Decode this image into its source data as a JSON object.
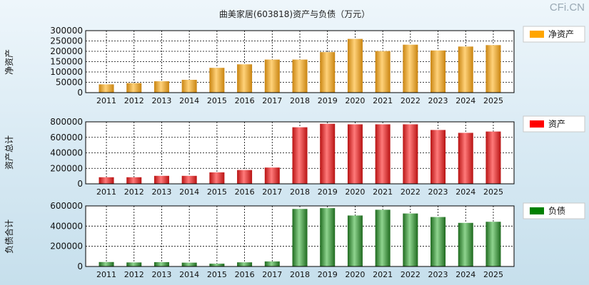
{
  "title": "曲美家居(603818)资产与负债（万元）",
  "watermark": "CFi.CN",
  "colors": {
    "net_assets": "#f2a52a",
    "total_assets": "#e02a2a",
    "total_liabilities": "#2e8a2e"
  },
  "chart_data": [
    {
      "type": "bar",
      "ylabel": "净资产",
      "legend": "净资产",
      "legend_position": "right",
      "grid": true,
      "categories": [
        "2011",
        "2012",
        "2013",
        "2014",
        "2015",
        "2016",
        "2017",
        "2018",
        "2019",
        "2020",
        "2021",
        "2022",
        "2023",
        "2024",
        "2025"
      ],
      "values": [
        40000,
        46000,
        55000,
        62000,
        120000,
        137000,
        160000,
        160000,
        196000,
        260000,
        201000,
        232000,
        204000,
        223000,
        230000
      ],
      "ylim": [
        0,
        300000
      ],
      "yticks": [
        "0",
        "50000",
        "100000",
        "150000",
        "200000",
        "250000",
        "300000"
      ]
    },
    {
      "type": "bar",
      "ylabel": "资产总计",
      "legend": "资产",
      "legend_position": "right",
      "grid": true,
      "categories": [
        "2011",
        "2012",
        "2013",
        "2014",
        "2015",
        "2016",
        "2017",
        "2018",
        "2019",
        "2020",
        "2021",
        "2022",
        "2023",
        "2024",
        "2025"
      ],
      "values": [
        85000,
        85000,
        103000,
        103000,
        148000,
        178000,
        210000,
        730000,
        775000,
        768000,
        768000,
        768000,
        695000,
        658000,
        675000
      ],
      "ylim": [
        0,
        800000
      ],
      "yticks": [
        "0",
        "200000",
        "400000",
        "600000",
        "800000"
      ]
    },
    {
      "type": "bar",
      "ylabel": "负债合计",
      "legend": "负债",
      "legend_position": "right",
      "grid": true,
      "categories": [
        "2011",
        "2012",
        "2013",
        "2014",
        "2015",
        "2016",
        "2017",
        "2018",
        "2019",
        "2020",
        "2021",
        "2022",
        "2023",
        "2024",
        "2025"
      ],
      "values": [
        44000,
        40000,
        43000,
        38000,
        28000,
        41000,
        50000,
        570000,
        578000,
        505000,
        562000,
        525000,
        490000,
        432000,
        443000
      ],
      "ylim": [
        0,
        600000
      ],
      "yticks": [
        "0",
        "200000",
        "400000",
        "600000"
      ]
    }
  ]
}
